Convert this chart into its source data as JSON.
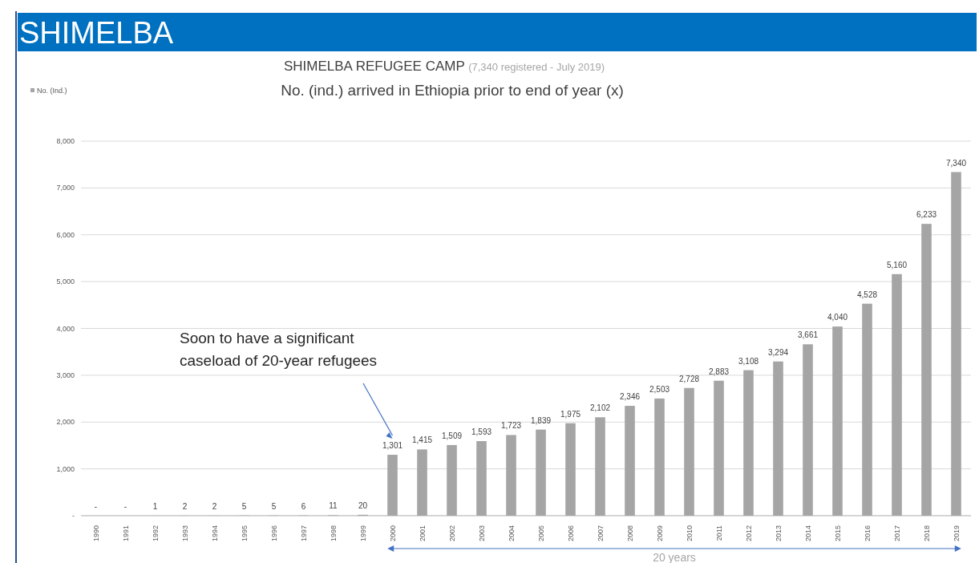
{
  "chart_data": {
    "type": "bar",
    "title": "SHIMELBA  REFUGEE CAMP (7,340 registered - July 2019)",
    "subtitle": "No. (ind.) arrived in Ethiopia prior to end of year (x)",
    "categories": [
      "1990",
      "1991",
      "1992",
      "1993",
      "1994",
      "1995",
      "1996",
      "1997",
      "1998",
      "1999",
      "2000",
      "2001",
      "2002",
      "2003",
      "2004",
      "2005",
      "2006",
      "2007",
      "2008",
      "2009",
      "2010",
      "2011",
      "2012",
      "2013",
      "2014",
      "2015",
      "2016",
      "2017",
      "2018",
      "2019"
    ],
    "series": [
      {
        "name": "No. (Ind.)",
        "color": "#a5a5a5",
        "values": [
          0,
          0,
          1,
          2,
          2,
          5,
          5,
          6,
          11,
          20,
          1301,
          1415,
          1509,
          1593,
          1723,
          1839,
          1975,
          2102,
          2346,
          2503,
          2728,
          2883,
          3108,
          3294,
          3661,
          4040,
          4528,
          5160,
          6233,
          7340
        ],
        "value_labels": [
          "-",
          "-",
          "1",
          "2",
          "2",
          "5",
          "5",
          "6",
          "11",
          "20",
          "1,301",
          "1,415",
          "1,509",
          "1,593",
          "1,723",
          "1,839",
          "1,975",
          "2,102",
          "2,346",
          "2,503",
          "2,728",
          "2,883",
          "3,108",
          "3,294",
          "3,661",
          "4,040",
          "4,528",
          "5,160",
          "6,233",
          "7,340"
        ]
      }
    ],
    "ylim": [
      0,
      8000
    ],
    "yticks": [
      {
        "value": 0,
        "label": "-"
      },
      {
        "value": 1000,
        "label": "1,000"
      },
      {
        "value": 2000,
        "label": "2,000"
      },
      {
        "value": 3000,
        "label": "3,000"
      },
      {
        "value": 4000,
        "label": "4,000"
      },
      {
        "value": 5000,
        "label": "5,000"
      },
      {
        "value": 6000,
        "label": "6,000"
      },
      {
        "value": 7000,
        "label": "7,000"
      },
      {
        "value": 8000,
        "label": "8,000"
      }
    ],
    "grid": "y",
    "legend": "top left",
    "annotations": [
      "SHIMELBA",
      "Soon to have a significant caseload of 20-year refugees",
      "20 years"
    ]
  }
}
